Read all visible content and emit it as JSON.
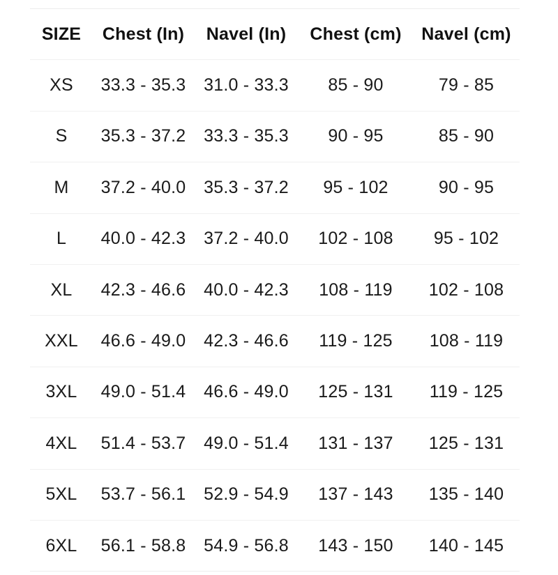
{
  "table": {
    "title": "size-chart",
    "columns": [
      "SIZE",
      "Chest (In)",
      "Navel (In)",
      "Chest (cm)",
      "Navel (cm)"
    ],
    "rows": [
      [
        "XS",
        "33.3 - 35.3",
        "31.0 - 33.3",
        "85 - 90",
        "79 - 85"
      ],
      [
        "S",
        "35.3 - 37.2",
        "33.3 - 35.3",
        "90 - 95",
        "85 - 90"
      ],
      [
        "M",
        "37.2 - 40.0",
        "35.3 - 37.2",
        "95 - 102",
        "90 - 95"
      ],
      [
        "L",
        "40.0 - 42.3",
        "37.2 - 40.0",
        "102 - 108",
        "95 - 102"
      ],
      [
        "XL",
        "42.3 - 46.6",
        "40.0 - 42.3",
        "108 - 119",
        "102 - 108"
      ],
      [
        "XXL",
        "46.6 - 49.0",
        "42.3 - 46.6",
        "119 - 125",
        "108 - 119"
      ],
      [
        "3XL",
        "49.0 - 51.4",
        "46.6 - 49.0",
        "125 - 131",
        "119 - 125"
      ],
      [
        "4XL",
        "51.4 - 53.7",
        "49.0 - 51.4",
        "131 - 137",
        "125 - 131"
      ],
      [
        "5XL",
        "53.7 - 56.1",
        "52.9 - 54.9",
        "137 - 143",
        "135 - 140"
      ],
      [
        "6XL",
        "56.1 - 58.8",
        "54.9 - 56.8",
        "143 - 150",
        "140 - 145"
      ]
    ]
  },
  "colors": {
    "text": "#1a1a1a",
    "row_divider": "#f0f0f0",
    "table_edge": "#ececec",
    "background": "#ffffff"
  }
}
